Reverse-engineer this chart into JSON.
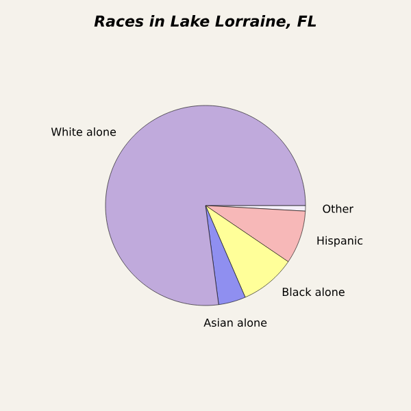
{
  "chart_data": {
    "type": "pie",
    "title": "Races in Lake Lorraine, FL",
    "categories": [
      "Other",
      "Hispanic",
      "Black alone",
      "Asian alone",
      "White alone"
    ],
    "values": [
      0.9,
      8.6,
      9.0,
      4.4,
      77.1
    ],
    "colors": [
      "#f4f0fa",
      "#f7b8b8",
      "#ffff99",
      "#8f8ff0",
      "#c0aadc"
    ]
  }
}
